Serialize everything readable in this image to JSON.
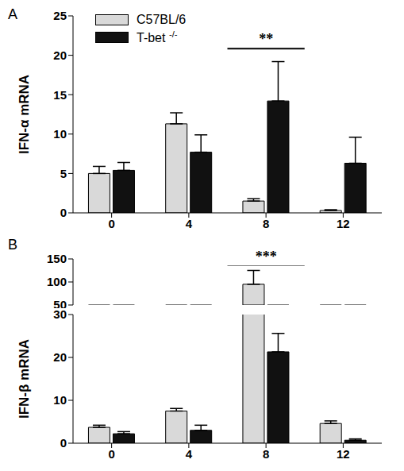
{
  "chart_data": [
    {
      "panel": "A",
      "type": "bar",
      "y_label": "IFN-α mRNA",
      "categories": [
        "0",
        "4",
        "8",
        "12"
      ],
      "series": [
        {
          "name": "C57BL/6",
          "color": "#d9d9d9",
          "values": [
            5.0,
            11.3,
            1.5,
            0.3
          ],
          "errors": [
            0.9,
            1.4,
            0.3,
            0.1
          ]
        },
        {
          "name": "T-bet -/-",
          "color": "#111111",
          "values": [
            5.4,
            7.7,
            14.2,
            6.3
          ],
          "errors": [
            1.0,
            2.2,
            5.0,
            3.3
          ]
        }
      ],
      "ylim": [
        0,
        25
      ],
      "yticks": [
        0,
        5,
        10,
        15,
        20,
        25
      ],
      "legend": "upper left",
      "annotations": [
        {
          "category": "8",
          "text": "**"
        }
      ]
    },
    {
      "panel": "B",
      "type": "bar",
      "y_label": "IFN-β mRNA",
      "categories": [
        "0",
        "4",
        "8",
        "12"
      ],
      "series": [
        {
          "name": "C57BL/6",
          "color": "#d9d9d9",
          "values": [
            3.7,
            7.5,
            95,
            4.6
          ],
          "errors": [
            0.5,
            0.6,
            30,
            0.6
          ]
        },
        {
          "name": "T-bet -/-",
          "color": "#111111",
          "values": [
            2.2,
            3.0,
            21.3,
            0.7
          ],
          "errors": [
            0.5,
            1.2,
            4.3,
            0.3
          ]
        }
      ],
      "ylim": [
        0,
        150
      ],
      "yticks": [
        0,
        10,
        20,
        30,
        50,
        100,
        150
      ],
      "ybreak": [
        30,
        50
      ],
      "annotations": [
        {
          "category": "8",
          "text": "***"
        }
      ]
    }
  ]
}
